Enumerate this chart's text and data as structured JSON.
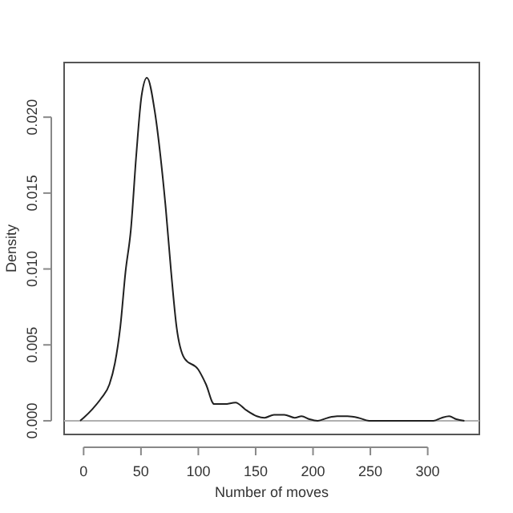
{
  "chart_data": {
    "type": "line",
    "xlabel": "Number of moves",
    "ylabel": "Density",
    "xlim": [
      -17,
      345
    ],
    "ylim": [
      -0.0009,
      0.0236
    ],
    "xticks": [
      0,
      50,
      100,
      150,
      200,
      250,
      300
    ],
    "yticks": [
      {
        "value": 0,
        "label": "0.000"
      },
      {
        "value": 0.005,
        "label": "0.005"
      },
      {
        "value": 0.01,
        "label": "0.010"
      },
      {
        "value": 0.015,
        "label": "0.015"
      },
      {
        "value": 0.02,
        "label": "0.020"
      }
    ],
    "ref_lines": [
      {
        "axis": "y",
        "value": 0,
        "color": "#b0b0b0"
      }
    ],
    "series": [
      {
        "color": "#202020",
        "x": [
          -3,
          0,
          8,
          15.5,
          22.5,
          27.3,
          32,
          36.5,
          41.2,
          45.9,
          50.5,
          55.2,
          62.2,
          66.9,
          71.6,
          76.3,
          81,
          88,
          99.7,
          106.7,
          113.8,
          123,
          132.4,
          141.7,
          151,
          157.8,
          166,
          175,
          184,
          190,
          197,
          204,
          213,
          221,
          230,
          239.5,
          249,
          260,
          280,
          305,
          312.3,
          318.7,
          325,
          332
        ],
        "values": [
          0,
          0.0002,
          0.0008,
          0.0015,
          0.0024,
          0.0038,
          0.0062,
          0.0098,
          0.0126,
          0.0175,
          0.0214,
          0.0226,
          0.0203,
          0.0175,
          0.014,
          0.0098,
          0.0062,
          0.0041,
          0.0034,
          0.0024,
          0.0011,
          0.0011,
          0.0012,
          0.0007,
          0.0003,
          0.0002,
          0.0004,
          0.0004,
          0.0002,
          0.0003,
          0.0001,
          0,
          0.0002,
          0.0003,
          0.0003,
          0.0002,
          0,
          0,
          0,
          0,
          0.0002,
          0.0003,
          0.0001,
          0
        ]
      }
    ]
  }
}
